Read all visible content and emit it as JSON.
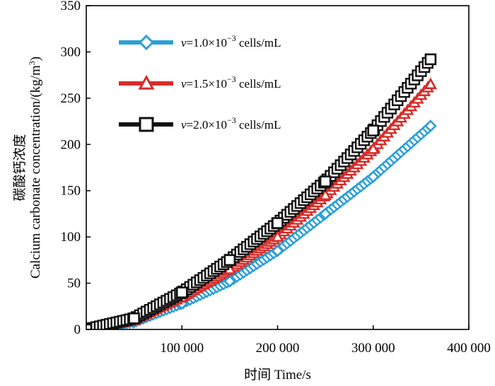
{
  "chart_data": {
    "type": "scatter",
    "xlabel": "时间 Time/s",
    "ylabel_cn": "碳酸钙浓度",
    "ylabel_en": "Calcium carbonate concentration/(kg/m",
    "ylabel_sup": "3",
    "ylabel_close": ")",
    "xlim": [
      0,
      400000
    ],
    "ylim": [
      0,
      350
    ],
    "xticks": [
      100000,
      200000,
      300000,
      400000
    ],
    "xtick_labels": [
      "100 000",
      "200 000",
      "300 000",
      "400 000"
    ],
    "yticks": [
      0,
      50,
      100,
      150,
      200,
      250,
      300,
      350
    ],
    "ytick_labels": [
      "0",
      "50",
      "100",
      "150",
      "200",
      "250",
      "300",
      "350"
    ],
    "legend_position": "top-left",
    "series": [
      {
        "name": "v=1.0×10⁻³ cells/mL",
        "legend_var": "v",
        "legend_eq": "=1.0×10",
        "legend_exp": "−3",
        "legend_unit": " cells/mL",
        "marker": "diamond",
        "color": "#2a9fd6",
        "x": [
          0,
          50000,
          100000,
          150000,
          200000,
          250000,
          300000,
          360000
        ],
        "y": [
          0,
          8,
          28,
          52,
          85,
          125,
          165,
          220
        ]
      },
      {
        "name": "v=1.5×10⁻³ cells/mL",
        "legend_var": "v",
        "legend_eq": "=1.5×10",
        "legend_exp": "−3",
        "legend_unit": " cells/mL",
        "marker": "triangle",
        "color": "#d62d2a",
        "x": [
          0,
          50000,
          100000,
          150000,
          200000,
          250000,
          300000,
          360000
        ],
        "y": [
          0,
          10,
          35,
          65,
          100,
          145,
          195,
          265
        ]
      },
      {
        "name": "v=2.0×10⁻³ cells/mL",
        "legend_var": "v",
        "legend_eq": "=2.0×10",
        "legend_exp": "−3",
        "legend_unit": " cells/mL",
        "marker": "square",
        "color": "#111111",
        "x": [
          0,
          50000,
          100000,
          150000,
          200000,
          250000,
          300000,
          360000
        ],
        "y": [
          0,
          12,
          40,
          75,
          115,
          160,
          215,
          292
        ]
      }
    ]
  }
}
